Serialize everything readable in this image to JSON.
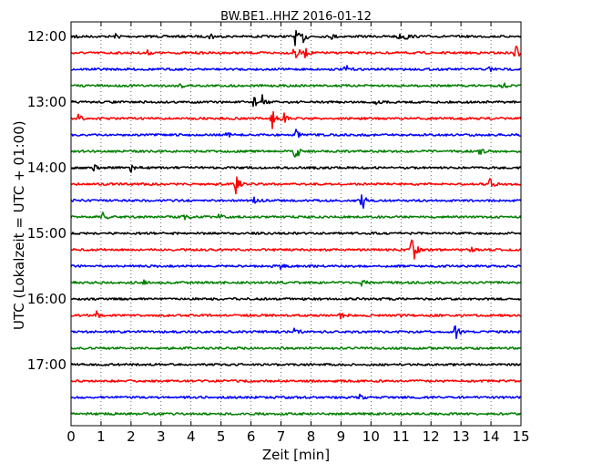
{
  "chart_data": {
    "type": "line",
    "title": "BW.BE1..HHZ 2016-01-12",
    "xlabel": "Zeit  [min]",
    "ylabel": "UTC (Lokalzeit = UTC + 01:00)",
    "xlim": [
      0,
      15
    ],
    "x_ticks": [
      0,
      1,
      2,
      3,
      4,
      5,
      6,
      7,
      8,
      9,
      10,
      11,
      12,
      13,
      14,
      15
    ],
    "y_ticks": [
      "12:00",
      "13:00",
      "14:00",
      "15:00",
      "16:00",
      "17:00"
    ],
    "grid": "vertical dotted at each minute",
    "color_cycle": [
      "#000000",
      "#ff0000",
      "#0000ff",
      "#008000"
    ],
    "series": [
      {
        "start": "12:00",
        "events": [
          {
            "t": 0.15,
            "a": 4
          },
          {
            "t": 1.5,
            "a": 3
          },
          {
            "t": 4.65,
            "a": 5
          },
          {
            "t": 7.45,
            "a": 11
          },
          {
            "t": 7.75,
            "a": 7
          },
          {
            "t": 8.7,
            "a": 3
          },
          {
            "t": 10.9,
            "a": 4
          },
          {
            "t": 11.15,
            "a": 4
          }
        ]
      },
      {
        "start": "12:15",
        "events": [
          {
            "t": 2.5,
            "a": 4
          },
          {
            "t": 7.45,
            "a": 15
          },
          {
            "t": 7.8,
            "a": 5
          },
          {
            "t": 14.8,
            "a": 13
          }
        ]
      },
      {
        "start": "12:30",
        "events": [
          {
            "t": 9.15,
            "a": 5
          },
          {
            "t": 13.95,
            "a": 4
          }
        ]
      },
      {
        "start": "12:45",
        "events": [
          {
            "t": 3.65,
            "a": 4
          },
          {
            "t": 14.4,
            "a": 4
          }
        ]
      },
      {
        "start": "13:00",
        "events": [
          {
            "t": 6.1,
            "a": 8
          },
          {
            "t": 6.35,
            "a": 9
          },
          {
            "t": 10.05,
            "a": 6
          }
        ]
      },
      {
        "start": "13:15",
        "events": [
          {
            "t": 0.2,
            "a": 7
          },
          {
            "t": 6.7,
            "a": 12
          },
          {
            "t": 7.1,
            "a": 5
          }
        ]
      },
      {
        "start": "13:30",
        "events": [
          {
            "t": 5.2,
            "a": 3
          },
          {
            "t": 7.5,
            "a": 5
          },
          {
            "t": 14.6,
            "a": 3
          }
        ]
      },
      {
        "start": "13:45",
        "events": [
          {
            "t": 7.45,
            "a": 20
          },
          {
            "t": 13.6,
            "a": 5
          }
        ]
      },
      {
        "start": "14:00",
        "events": [
          {
            "t": 0.75,
            "a": 4
          },
          {
            "t": 2.0,
            "a": 5
          },
          {
            "t": 8.1,
            "a": 3
          }
        ]
      },
      {
        "start": "14:15",
        "events": [
          {
            "t": 5.5,
            "a": 11
          },
          {
            "t": 13.95,
            "a": 8
          }
        ]
      },
      {
        "start": "14:30",
        "events": [
          {
            "t": 6.1,
            "a": 4
          },
          {
            "t": 9.7,
            "a": 13
          }
        ]
      },
      {
        "start": "14:45",
        "events": [
          {
            "t": 1.05,
            "a": 6
          },
          {
            "t": 3.75,
            "a": 4
          },
          {
            "t": 4.95,
            "a": 4
          }
        ]
      },
      {
        "start": "15:00",
        "events": [
          {
            "t": 10.85,
            "a": 3
          }
        ]
      },
      {
        "start": "15:15",
        "events": [
          {
            "t": 11.35,
            "a": 36
          },
          {
            "t": 13.3,
            "a": 3
          }
        ]
      },
      {
        "start": "15:30",
        "events": [
          {
            "t": 7.0,
            "a": 3
          }
        ]
      },
      {
        "start": "15:45",
        "events": [
          {
            "t": 2.4,
            "a": 3
          },
          {
            "t": 9.7,
            "a": 5
          }
        ]
      },
      {
        "start": "16:00",
        "events": []
      },
      {
        "start": "16:15",
        "events": [
          {
            "t": 0.85,
            "a": 4
          },
          {
            "t": 9.0,
            "a": 4
          }
        ]
      },
      {
        "start": "16:30",
        "events": [
          {
            "t": 7.45,
            "a": 8
          },
          {
            "t": 12.8,
            "a": 12
          }
        ]
      },
      {
        "start": "16:45",
        "events": []
      },
      {
        "start": "17:00",
        "events": []
      },
      {
        "start": "17:15",
        "events": []
      },
      {
        "start": "17:30",
        "events": [
          {
            "t": 9.65,
            "a": 4
          }
        ]
      },
      {
        "start": "17:45",
        "events": []
      }
    ]
  }
}
